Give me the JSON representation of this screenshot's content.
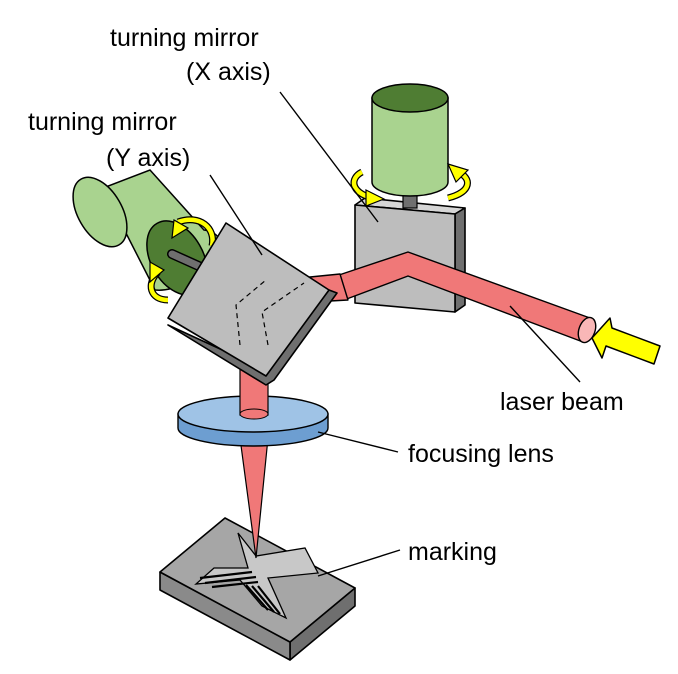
{
  "labels": {
    "mirror_x_line1": "turning mirror",
    "mirror_x_line2": "(X axis)",
    "mirror_y_line1": "turning mirror",
    "mirror_y_line2": "(Y axis)",
    "laser_beam": "laser beam",
    "focusing_lens": "focusing lens",
    "marking": "marking"
  },
  "colors": {
    "motor_body": "#a9d38f",
    "motor_top": "#4f7d33",
    "mirror_face": "#bdbdbd",
    "mirror_side": "#7f7f7f",
    "beam": "#f07878",
    "beam_light": "#f9b7b7",
    "lens": "#9fc3e6",
    "lens_rim": "#6d9ed1",
    "arrow": "#ffff00",
    "workpiece_top": "#a6a6a6",
    "workpiece_side": "#7a7a7a"
  }
}
